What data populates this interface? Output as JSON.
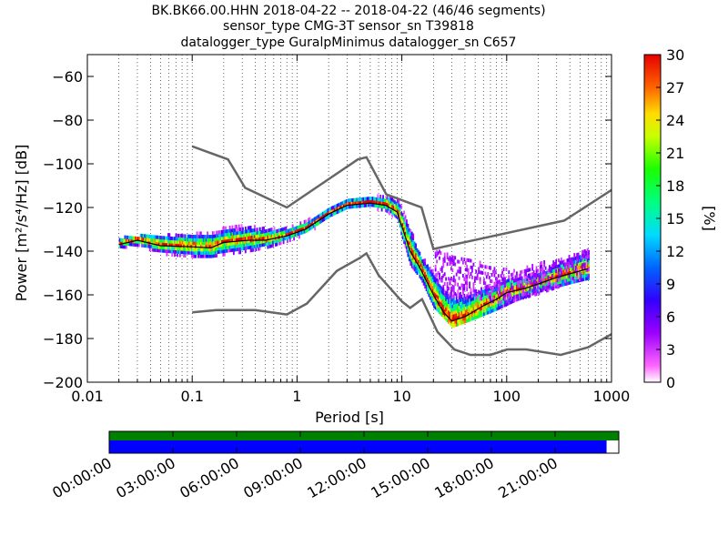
{
  "title_lines": [
    "BK.BK66.00.HHN   2018-04-22 -- 2018-04-22  (46/46 segments)",
    "sensor_type CMG-3T sensor_sn T39818",
    "datalogger_type GuralpMinimus datalogger_sn C657"
  ],
  "chart_data": {
    "type": "heatmap",
    "xlabel": "Period [s]",
    "ylabel": "Power [m²/s⁴/Hz] [dB]",
    "x_scale": "log",
    "xlim": [
      0.01,
      1000
    ],
    "ylim": [
      -200,
      -50
    ],
    "x_ticks": [
      0.01,
      0.1,
      1,
      10,
      100,
      1000
    ],
    "x_tick_labels": [
      "0.01",
      "0.1",
      "1",
      "10",
      "100",
      "1000"
    ],
    "y_ticks": [
      -200,
      -180,
      -160,
      -140,
      -120,
      -100,
      -80,
      -60
    ],
    "y_tick_labels": [
      "−200",
      "−180",
      "−160",
      "−140",
      "−120",
      "−100",
      "−80",
      "−60"
    ],
    "grid": "dotted vertical at log decades",
    "colorbar": {
      "label": "[%]",
      "range": [
        0,
        30
      ],
      "ticks": [
        0,
        3,
        6,
        9,
        12,
        15,
        18,
        21,
        24,
        27,
        30
      ],
      "tick_labels": [
        "0",
        "3",
        "6",
        "9",
        "12",
        "15",
        "18",
        "21",
        "24",
        "27",
        "30"
      ]
    },
    "noise_models": [
      {
        "name": "high",
        "points": [
          [
            0.1,
            -92
          ],
          [
            0.22,
            -98
          ],
          [
            0.32,
            -111
          ],
          [
            0.8,
            -120
          ],
          [
            3.8,
            -98
          ],
          [
            4.6,
            -97
          ],
          [
            7.1,
            -114
          ],
          [
            15.4,
            -120
          ],
          [
            20,
            -139
          ],
          [
            354,
            -126
          ],
          [
            1000,
            -112
          ]
        ]
      },
      {
        "name": "low",
        "points": [
          [
            0.1,
            -168
          ],
          [
            0.17,
            -167
          ],
          [
            0.4,
            -167
          ],
          [
            0.8,
            -169
          ],
          [
            1.24,
            -164
          ],
          [
            2.4,
            -149
          ],
          [
            4,
            -143
          ],
          [
            4.6,
            -141
          ],
          [
            6,
            -151
          ],
          [
            10,
            -163
          ],
          [
            12,
            -166
          ],
          [
            15.6,
            -162
          ],
          [
            21.9,
            -177
          ],
          [
            31.6,
            -185
          ],
          [
            45,
            -187.5
          ],
          [
            70,
            -187.5
          ],
          [
            101,
            -185
          ],
          [
            154,
            -185
          ],
          [
            328,
            -187.5
          ],
          [
            600,
            -184
          ],
          [
            1000,
            -178
          ]
        ]
      }
    ],
    "mode_line": [
      [
        0.02,
        -137
      ],
      [
        0.03,
        -135
      ],
      [
        0.05,
        -137.5
      ],
      [
        0.1,
        -138
      ],
      [
        0.15,
        -138.5
      ],
      [
        0.2,
        -136
      ],
      [
        0.35,
        -135
      ],
      [
        0.5,
        -135
      ],
      [
        0.8,
        -133
      ],
      [
        1.2,
        -130
      ],
      [
        2,
        -123
      ],
      [
        3,
        -119
      ],
      [
        5,
        -118
      ],
      [
        7,
        -119
      ],
      [
        9,
        -122
      ],
      [
        12,
        -140
      ],
      [
        15,
        -148
      ],
      [
        20,
        -160
      ],
      [
        25,
        -168
      ],
      [
        30,
        -172
      ],
      [
        40,
        -170
      ],
      [
        60,
        -165
      ],
      [
        80,
        -162
      ],
      [
        100,
        -159
      ],
      [
        150,
        -157
      ],
      [
        200,
        -155
      ],
      [
        300,
        -152
      ],
      [
        600,
        -148
      ]
    ],
    "psd_spread": [
      [
        0.02,
        -135,
        -139
      ],
      [
        0.05,
        -134,
        -141
      ],
      [
        0.1,
        -133,
        -142
      ],
      [
        0.15,
        -132,
        -142
      ],
      [
        0.3,
        -130,
        -140
      ],
      [
        0.5,
        -130,
        -138
      ],
      [
        0.8,
        -130,
        -135
      ],
      [
        1.2,
        -127,
        -132
      ],
      [
        2,
        -121,
        -125
      ],
      [
        3,
        -117,
        -121
      ],
      [
        5,
        -116,
        -120
      ],
      [
        7,
        -115,
        -121
      ],
      [
        9,
        -118,
        -126
      ],
      [
        12,
        -130,
        -146
      ],
      [
        15,
        -142,
        -152
      ],
      [
        20,
        -150,
        -165
      ],
      [
        30,
        -154,
        -174
      ],
      [
        50,
        -155,
        -170
      ],
      [
        80,
        -154,
        -166
      ],
      [
        120,
        -152,
        -162
      ],
      [
        200,
        -150,
        -158
      ],
      [
        400,
        -142,
        -154
      ],
      [
        600,
        -139,
        -152
      ]
    ],
    "psd_scatter_extent": [
      [
        20,
        -140,
        -150
      ],
      [
        30,
        -142,
        -160
      ],
      [
        50,
        -145,
        -162
      ],
      [
        80,
        -148,
        -164
      ],
      [
        100,
        -149,
        -164
      ],
      [
        200,
        -146,
        -160
      ],
      [
        400,
        -142,
        -155
      ],
      [
        600,
        -140,
        -152
      ]
    ]
  },
  "time_axis": {
    "labels": [
      "00:00:00",
      "03:00:00",
      "06:00:00",
      "09:00:00",
      "12:00:00",
      "15:00:00",
      "18:00:00",
      "21:00:00"
    ],
    "coverage_fraction": 0.976,
    "colors": {
      "gaps_bar": "#008000",
      "coverage_bar": "#0000ff"
    }
  }
}
